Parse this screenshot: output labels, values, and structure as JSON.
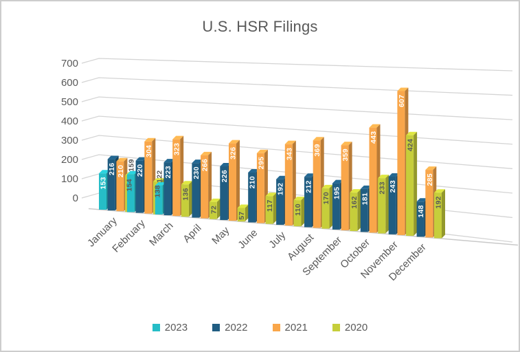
{
  "title": "U.S. HSR Filings",
  "chart_data": {
    "type": "bar",
    "style": "3d-clustered-column",
    "title": "U.S. HSR Filings",
    "xlabel": "",
    "ylabel": "",
    "ylim": [
      0,
      700
    ],
    "yticks": [
      0,
      100,
      200,
      300,
      400,
      500,
      600,
      700
    ],
    "grid": true,
    "legend_position": "bottom",
    "categories": [
      "January",
      "February",
      "March",
      "April",
      "May",
      "June",
      "July",
      "August",
      "September",
      "October",
      "November",
      "December"
    ],
    "series": [
      {
        "name": "2023",
        "color": "#26BDC7",
        "label_color": "#ffffff",
        "outside_label_indices": [
          1,
          2
        ],
        "values": [
          153,
          159,
          122,
          null,
          null,
          null,
          null,
          null,
          null,
          null,
          null,
          null
        ]
      },
      {
        "name": "2022",
        "color": "#205D82",
        "label_color": "#ffffff",
        "outside_label_indices": [],
        "values": [
          216,
          220,
          223,
          230,
          226,
          210,
          192,
          212,
          195,
          181,
          243,
          148
        ]
      },
      {
        "name": "2021",
        "color": "#F9A64A",
        "label_color": "#ffffff",
        "outside_label_indices": [],
        "values": [
          210,
          304,
          323,
          266,
          326,
          295,
          343,
          369,
          359,
          443,
          607,
          285
        ]
      },
      {
        "name": "2020",
        "color": "#C6CE3B",
        "label_color": "#595959",
        "outside_label_indices": [],
        "values": [
          154,
          138,
          136,
          72,
          57,
          117,
          110,
          170,
          162,
          233,
          424,
          192
        ]
      }
    ],
    "outside_label_color": "#595959",
    "axis_text_color": "#595959",
    "gridline_color": "#d4d4d4"
  }
}
